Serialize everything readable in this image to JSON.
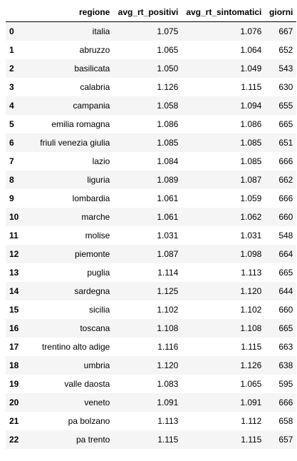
{
  "table": {
    "columns": [
      "",
      "regione",
      "avg_rt_positivi",
      "avg_rt_sintomatici",
      "giorni"
    ],
    "rows": [
      {
        "index": "0",
        "regione": "italia",
        "avg_rt_positivi": "1.075",
        "avg_rt_sintomatici": "1.076",
        "giorni": "667"
      },
      {
        "index": "1",
        "regione": "abruzzo",
        "avg_rt_positivi": "1.065",
        "avg_rt_sintomatici": "1.064",
        "giorni": "652"
      },
      {
        "index": "2",
        "regione": "basilicata",
        "avg_rt_positivi": "1.050",
        "avg_rt_sintomatici": "1.049",
        "giorni": "543"
      },
      {
        "index": "3",
        "regione": "calabria",
        "avg_rt_positivi": "1.126",
        "avg_rt_sintomatici": "1.115",
        "giorni": "630"
      },
      {
        "index": "4",
        "regione": "campania",
        "avg_rt_positivi": "1.058",
        "avg_rt_sintomatici": "1.094",
        "giorni": "655"
      },
      {
        "index": "5",
        "regione": "emilia romagna",
        "avg_rt_positivi": "1.086",
        "avg_rt_sintomatici": "1.086",
        "giorni": "665"
      },
      {
        "index": "6",
        "regione": "friuli venezia giulia",
        "avg_rt_positivi": "1.085",
        "avg_rt_sintomatici": "1.085",
        "giorni": "651"
      },
      {
        "index": "7",
        "regione": "lazio",
        "avg_rt_positivi": "1.084",
        "avg_rt_sintomatici": "1.085",
        "giorni": "666"
      },
      {
        "index": "8",
        "regione": "liguria",
        "avg_rt_positivi": "1.089",
        "avg_rt_sintomatici": "1.087",
        "giorni": "662"
      },
      {
        "index": "9",
        "regione": "lombardia",
        "avg_rt_positivi": "1.061",
        "avg_rt_sintomatici": "1.059",
        "giorni": "666"
      },
      {
        "index": "10",
        "regione": "marche",
        "avg_rt_positivi": "1.061",
        "avg_rt_sintomatici": "1.062",
        "giorni": "660"
      },
      {
        "index": "11",
        "regione": "molise",
        "avg_rt_positivi": "1.031",
        "avg_rt_sintomatici": "1.031",
        "giorni": "548"
      },
      {
        "index": "12",
        "regione": "piemonte",
        "avg_rt_positivi": "1.087",
        "avg_rt_sintomatici": "1.098",
        "giorni": "664"
      },
      {
        "index": "13",
        "regione": "puglia",
        "avg_rt_positivi": "1.114",
        "avg_rt_sintomatici": "1.113",
        "giorni": "665"
      },
      {
        "index": "14",
        "regione": "sardegna",
        "avg_rt_positivi": "1.125",
        "avg_rt_sintomatici": "1.120",
        "giorni": "644"
      },
      {
        "index": "15",
        "regione": "sicilia",
        "avg_rt_positivi": "1.102",
        "avg_rt_sintomatici": "1.102",
        "giorni": "660"
      },
      {
        "index": "16",
        "regione": "toscana",
        "avg_rt_positivi": "1.108",
        "avg_rt_sintomatici": "1.108",
        "giorni": "665"
      },
      {
        "index": "17",
        "regione": "trentino alto adige",
        "avg_rt_positivi": "1.116",
        "avg_rt_sintomatici": "1.115",
        "giorni": "663"
      },
      {
        "index": "18",
        "regione": "umbria",
        "avg_rt_positivi": "1.120",
        "avg_rt_sintomatici": "1.126",
        "giorni": "638"
      },
      {
        "index": "19",
        "regione": "valle daosta",
        "avg_rt_positivi": "1.083",
        "avg_rt_sintomatici": "1.065",
        "giorni": "595"
      },
      {
        "index": "20",
        "regione": "veneto",
        "avg_rt_positivi": "1.091",
        "avg_rt_sintomatici": "1.091",
        "giorni": "666"
      },
      {
        "index": "21",
        "regione": "pa bolzano",
        "avg_rt_positivi": "1.113",
        "avg_rt_sintomatici": "1.112",
        "giorni": "658"
      },
      {
        "index": "22",
        "regione": "pa trento",
        "avg_rt_positivi": "1.115",
        "avg_rt_sintomatici": "1.115",
        "giorni": "657"
      }
    ]
  },
  "colors": {
    "row_stripe": "#f5f5f5",
    "header_rule": "#000000",
    "text": "#000000"
  }
}
